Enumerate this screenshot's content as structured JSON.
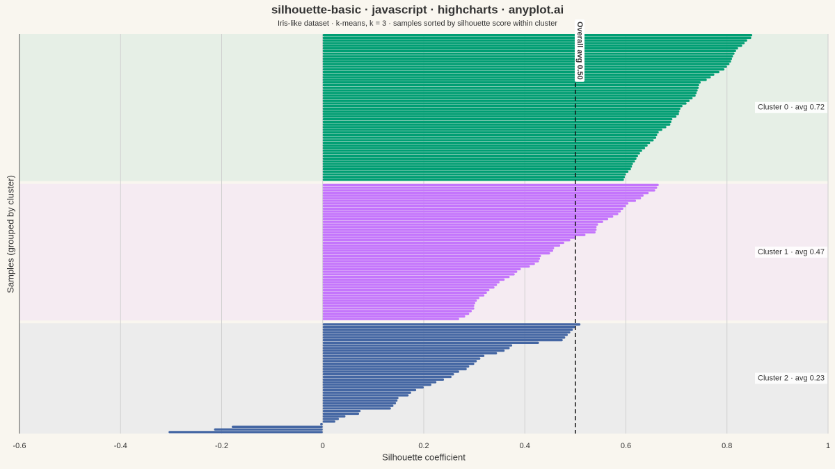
{
  "chart_data": {
    "type": "silhouette",
    "title": "silhouette-basic · javascript · highcharts · anyplot.ai",
    "subtitle": "Iris-like dataset · k-means, k = 3 · samples sorted by silhouette score within cluster",
    "x_label": "Silhouette coefficient",
    "y_label": "Samples (grouped by cluster)",
    "xlim": [
      -0.6,
      1
    ],
    "xticks": [
      -0.6,
      -0.4,
      -0.2,
      0,
      0.2,
      0.4,
      0.6,
      0.8,
      1
    ],
    "grid": true,
    "reference_line": {
      "value": 0.5,
      "label": "Overall avg 0.50"
    },
    "clusters": [
      {
        "label": "Cluster 0 · avg 0.72",
        "color": "#009e73",
        "band_color": "#e6efe6",
        "values": [
          0.85,
          0.848,
          0.84,
          0.835,
          0.83,
          0.822,
          0.818,
          0.815,
          0.812,
          0.81,
          0.808,
          0.805,
          0.8,
          0.795,
          0.785,
          0.775,
          0.768,
          0.76,
          0.748,
          0.745,
          0.744,
          0.742,
          0.74,
          0.738,
          0.732,
          0.726,
          0.72,
          0.712,
          0.708,
          0.706,
          0.705,
          0.7,
          0.692,
          0.69,
          0.688,
          0.68,
          0.672,
          0.665,
          0.662,
          0.66,
          0.655,
          0.648,
          0.643,
          0.638,
          0.632,
          0.628,
          0.624,
          0.621,
          0.618,
          0.614,
          0.612,
          0.61,
          0.605,
          0.6,
          0.598,
          0.596
        ]
      },
      {
        "label": "Cluster 1 · avg 0.47",
        "color": "#c475fc",
        "band_color": "#f5ebf2",
        "values": [
          0.665,
          0.662,
          0.658,
          0.645,
          0.635,
          0.63,
          0.62,
          0.605,
          0.6,
          0.595,
          0.59,
          0.585,
          0.575,
          0.565,
          0.555,
          0.545,
          0.542,
          0.542,
          0.54,
          0.52,
          0.5,
          0.49,
          0.478,
          0.47,
          0.458,
          0.456,
          0.45,
          0.432,
          0.43,
          0.428,
          0.42,
          0.41,
          0.392,
          0.385,
          0.38,
          0.37,
          0.36,
          0.35,
          0.345,
          0.34,
          0.33,
          0.325,
          0.32,
          0.31,
          0.305,
          0.302,
          0.3,
          0.3,
          0.295,
          0.29,
          0.282,
          0.27
        ]
      },
      {
        "label": "Cluster 2 · avg 0.23",
        "color": "#4466a3",
        "band_color": "#ececec",
        "values": [
          0.51,
          0.5,
          0.495,
          0.49,
          0.485,
          0.48,
          0.475,
          0.428,
          0.375,
          0.37,
          0.36,
          0.345,
          0.32,
          0.312,
          0.305,
          0.3,
          0.29,
          0.285,
          0.27,
          0.26,
          0.255,
          0.24,
          0.225,
          0.215,
          0.2,
          0.185,
          0.175,
          0.17,
          0.15,
          0.148,
          0.145,
          0.14,
          0.135,
          0.075,
          0.072,
          0.045,
          0.032,
          0.025,
          -0.005,
          -0.18,
          -0.215,
          -0.305
        ]
      }
    ]
  }
}
